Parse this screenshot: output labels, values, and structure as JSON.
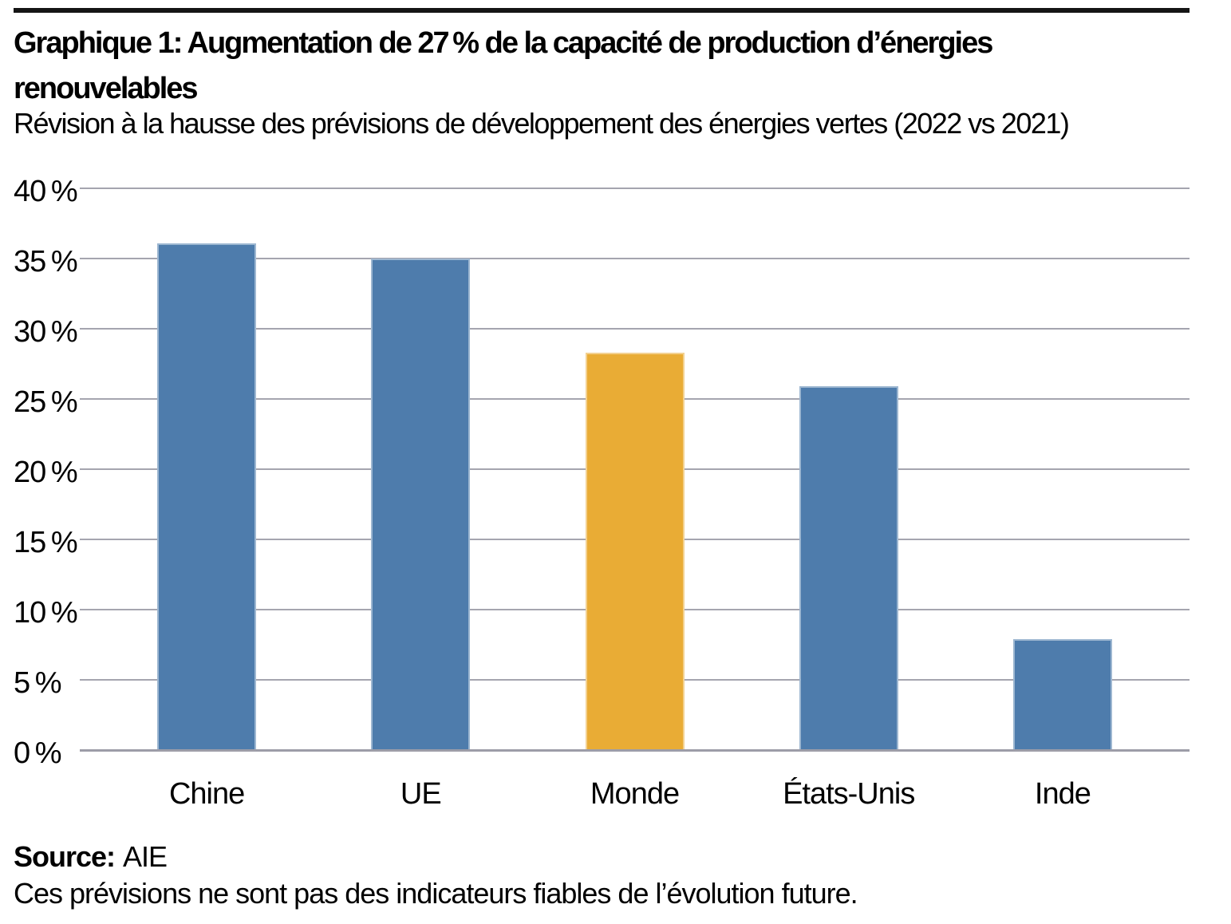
{
  "header": {
    "title_lines": [
      "Graphique 1: Augmentation de 27 % de la capacité de production d’énergies",
      "renouvelables"
    ],
    "subtitle": "Révision à la hausse des prévisions de développement des énergies vertes (2022 vs 2021)"
  },
  "chart_data": {
    "type": "bar",
    "categories": [
      "Chine",
      "UE",
      "Monde",
      "États-Unis",
      "Inde"
    ],
    "values": [
      36.1,
      35,
      28.3,
      25.9,
      7.9
    ],
    "unit": "%",
    "title": "Graphique 1: Augmentation de 27 % de la capacité de production d’énergies renouvelables",
    "subtitle": "Révision à la hausse des prévisions de développement des énergies vertes (2022 vs 2021)",
    "xlabel": "",
    "ylabel": "",
    "ylim": [
      0,
      40
    ],
    "grid": true,
    "legend": "none",
    "yticks": [
      {
        "v": 40,
        "label": "40 %"
      },
      {
        "v": 35,
        "label": "35 %"
      },
      {
        "v": 30,
        "label": "30 %"
      },
      {
        "v": 25,
        "label": "25 %"
      },
      {
        "v": 20,
        "label": "20 %"
      },
      {
        "v": 15,
        "label": "15 %"
      },
      {
        "v": 10,
        "label": "10 %"
      },
      {
        "v": 5,
        "label": "5 %"
      },
      {
        "v": 0,
        "label": "0 %"
      }
    ],
    "highlight_category": "Monde",
    "colors": {
      "bar_default": "#4E7CAC",
      "bar_highlight": "#E9AC35",
      "gridline": "#A5A5AF",
      "axisline": "#9D9DA8"
    }
  },
  "footer": {
    "source_label": "Source:",
    "source_value": "AIE",
    "note": "Ces prévisions ne sont pas des indicateurs fiables de l’évolution future."
  }
}
